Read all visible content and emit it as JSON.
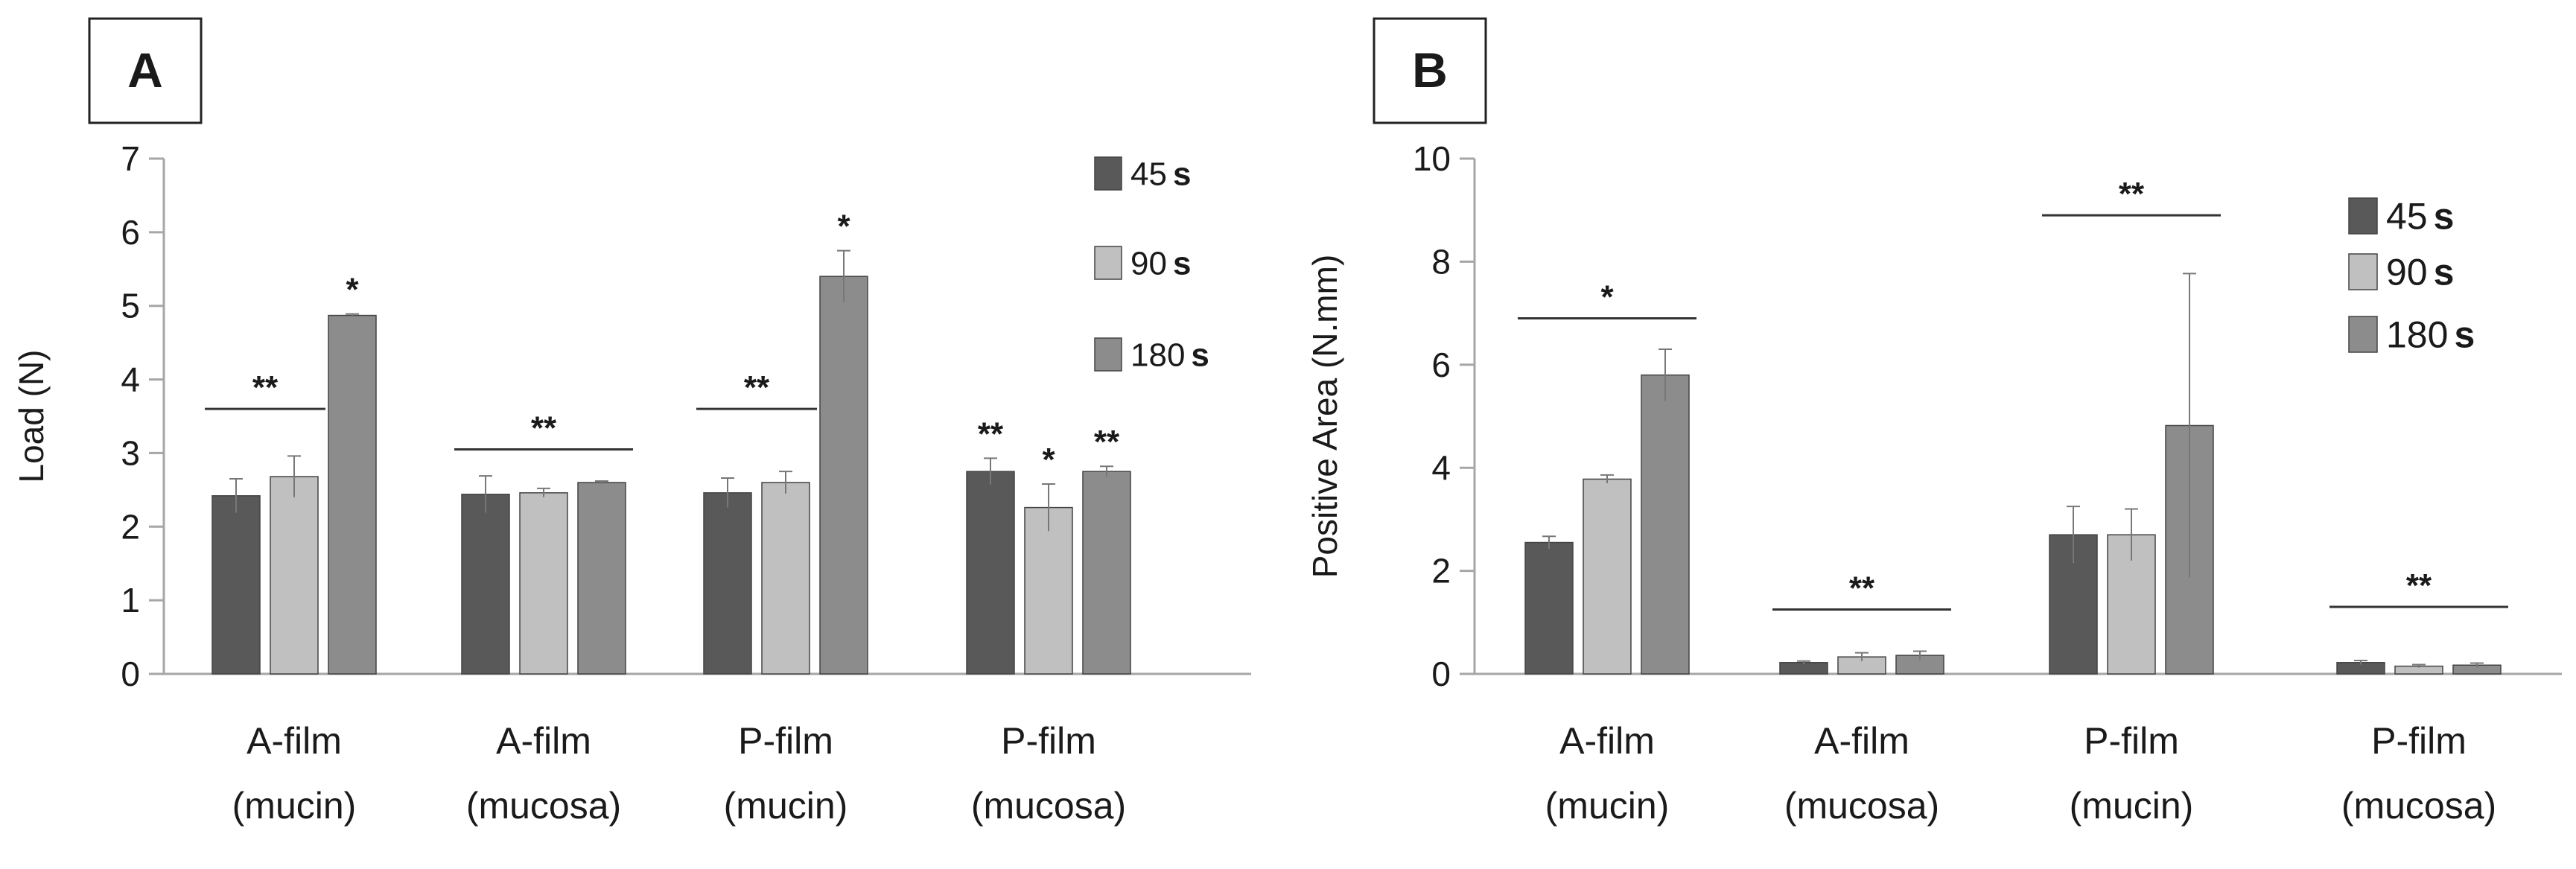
{
  "chart_data": [
    {
      "panel_label": "A",
      "type": "bar",
      "ylabel": "Load (N)",
      "ylim": [
        0,
        7
      ],
      "yticks": [
        0,
        1,
        2,
        3,
        4,
        5,
        6,
        7
      ],
      "categories": [
        [
          "A-film",
          "(mucin)"
        ],
        [
          "A-film",
          "(mucosa)"
        ],
        [
          "P-film",
          "(mucin)"
        ],
        [
          "P-film",
          "(mucosa)"
        ]
      ],
      "series": [
        {
          "name": "45",
          "unit": "s",
          "values": [
            2.42,
            2.44,
            2.46,
            2.75
          ],
          "errors": [
            0.23,
            0.25,
            0.2,
            0.18
          ]
        },
        {
          "name": "90",
          "unit": "s",
          "values": [
            2.68,
            2.46,
            2.6,
            2.26
          ],
          "errors": [
            0.28,
            0.06,
            0.15,
            0.32
          ]
        },
        {
          "name": "180",
          "unit": "s",
          "values": [
            4.87,
            2.6,
            5.4,
            2.75
          ],
          "errors": [
            0.02,
            0.02,
            0.35,
            0.07
          ]
        }
      ],
      "group_annotations": [
        {
          "text": "**",
          "category": 0,
          "span": [
            0,
            1
          ],
          "y": 3.6
        },
        {
          "text": "**",
          "category": 1,
          "span": [
            0,
            2
          ],
          "y": 3.05
        },
        {
          "text": "**",
          "category": 2,
          "span": [
            0,
            1
          ],
          "y": 3.6
        }
      ],
      "bar_annotations": [
        {
          "text": "*",
          "category": 0,
          "series": 2
        },
        {
          "text": "*",
          "category": 2,
          "series": 2
        },
        {
          "text": "**",
          "category": 3,
          "series": 0
        },
        {
          "text": "*",
          "category": 3,
          "series": 1
        },
        {
          "text": "**",
          "category": 3,
          "series": 2
        }
      ],
      "legend": "top-right",
      "grid": false
    },
    {
      "panel_label": "B",
      "type": "bar",
      "ylabel": "Positive Area (N.mm)",
      "ylim": [
        0,
        10
      ],
      "yticks": [
        0,
        2,
        4,
        6,
        8,
        10
      ],
      "categories": [
        [
          "A-film",
          "(mucin)"
        ],
        [
          "A-film",
          "(mucosa)"
        ],
        [
          "P-film",
          "(mucin)"
        ],
        [
          "P-film",
          "(mucosa)"
        ]
      ],
      "series": [
        {
          "name": "45",
          "unit": "s",
          "values": [
            2.55,
            0.22,
            2.7,
            0.22
          ],
          "errors": [
            0.12,
            0.03,
            0.55,
            0.04
          ]
        },
        {
          "name": "90",
          "unit": "s",
          "values": [
            3.78,
            0.33,
            2.7,
            0.15
          ],
          "errors": [
            0.08,
            0.08,
            0.5,
            0.03
          ]
        },
        {
          "name": "180",
          "unit": "s",
          "values": [
            5.8,
            0.36,
            4.82,
            0.17
          ],
          "errors": [
            0.5,
            0.08,
            2.95,
            0.04
          ]
        }
      ],
      "group_annotations": [
        {
          "text": "*",
          "category": 0,
          "span": [
            0,
            2
          ],
          "y": 6.9
        },
        {
          "text": "**",
          "category": 1,
          "span": [
            0,
            2
          ],
          "y": 1.25
        },
        {
          "text": "**",
          "category": 2,
          "span": [
            0,
            2
          ],
          "y": 8.9
        },
        {
          "text": "**",
          "category": 3,
          "span": [
            0,
            2
          ],
          "y": 1.3
        }
      ],
      "bar_annotations": [],
      "legend": "top-right",
      "grid": false
    }
  ],
  "colors": {
    "45": "#595959",
    "90": "#c0c0c0",
    "180": "#8c8c8c",
    "axis": "#a6a6a6",
    "text": "#1a1a1a"
  }
}
